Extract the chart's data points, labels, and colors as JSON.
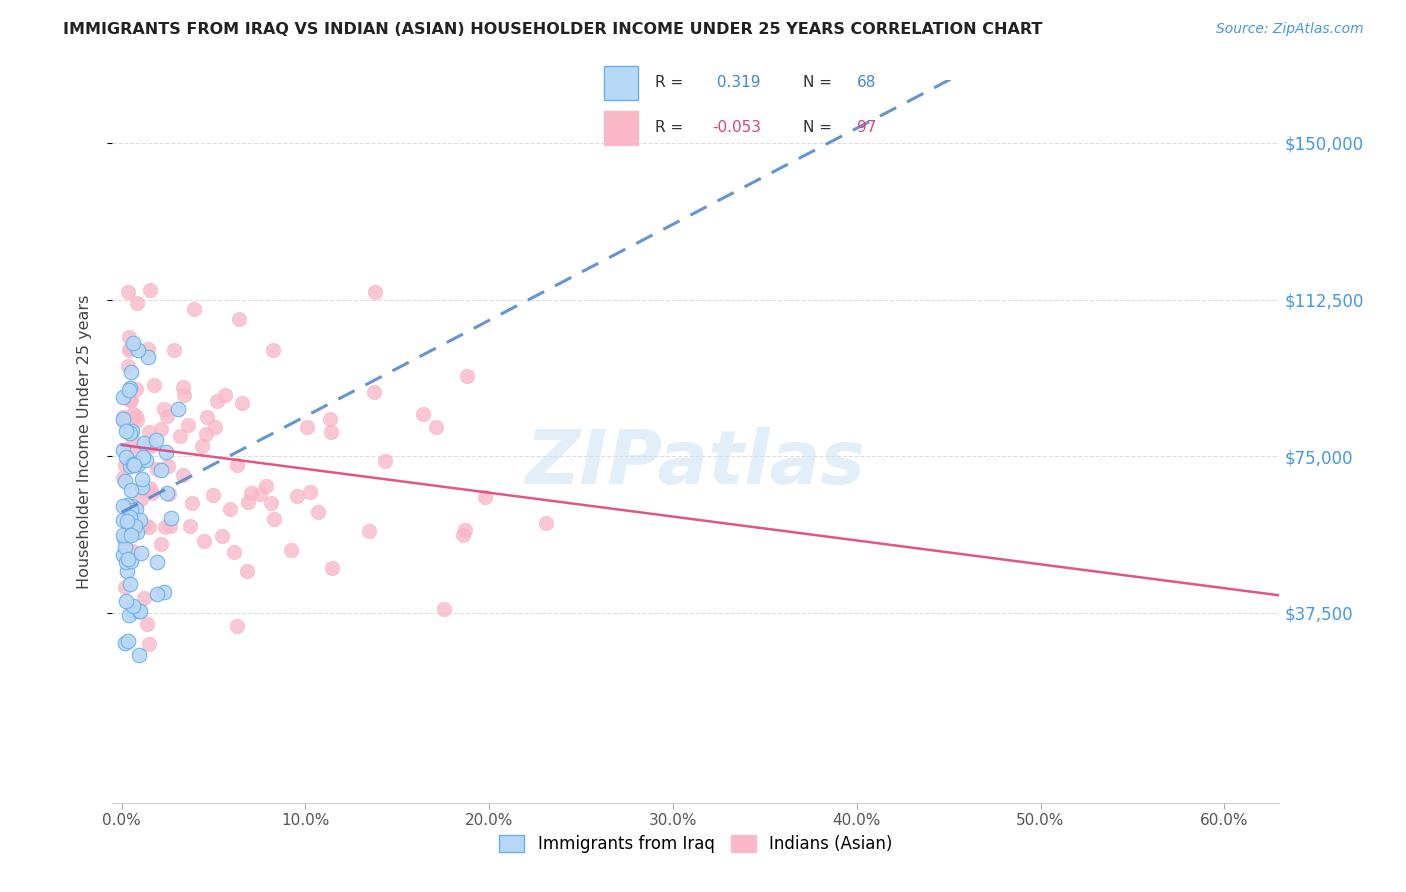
{
  "title": "IMMIGRANTS FROM IRAQ VS INDIAN (ASIAN) HOUSEHOLDER INCOME UNDER 25 YEARS CORRELATION CHART",
  "source": "Source: ZipAtlas.com",
  "ylabel": "Householder Income Under 25 years",
  "ylabel_ticks": [
    "$37,500",
    "$75,000",
    "$112,500",
    "$150,000"
  ],
  "ylabel_tick_vals": [
    37500,
    75000,
    112500,
    150000
  ],
  "ylim_low": -8000,
  "ylim_high": 165000,
  "xlim_low": -0.005,
  "xlim_high": 0.63,
  "legend_r_iraq": "0.319",
  "legend_n_iraq": "68",
  "legend_r_indian": "-0.053",
  "legend_n_indian": "97",
  "color_iraq_fill": "#b8d8f8",
  "color_iraq_edge": "#6aaee8",
  "color_indian_fill": "#f8b8c8",
  "color_indian_edge": "#f8b8c8",
  "line_color_iraq": "#5588cc",
  "line_color_indian": "#dd4477",
  "watermark_color": "#d0e4f4",
  "title_color": "#222222",
  "source_color": "#4499dd",
  "ytick_color": "#4499dd",
  "legend_text_color_normal": "#333333",
  "legend_val_color_iraq": "#4488cc",
  "legend_val_color_indian": "#dd4477",
  "grid_color": "#dddddd",
  "xtick_labels": [
    "0.0%",
    "10.0%",
    "20.0%",
    "30.0%",
    "40.0%",
    "50.0%",
    "60.0%"
  ],
  "xtick_vals": [
    0.0,
    0.1,
    0.2,
    0.3,
    0.4,
    0.5,
    0.6
  ]
}
